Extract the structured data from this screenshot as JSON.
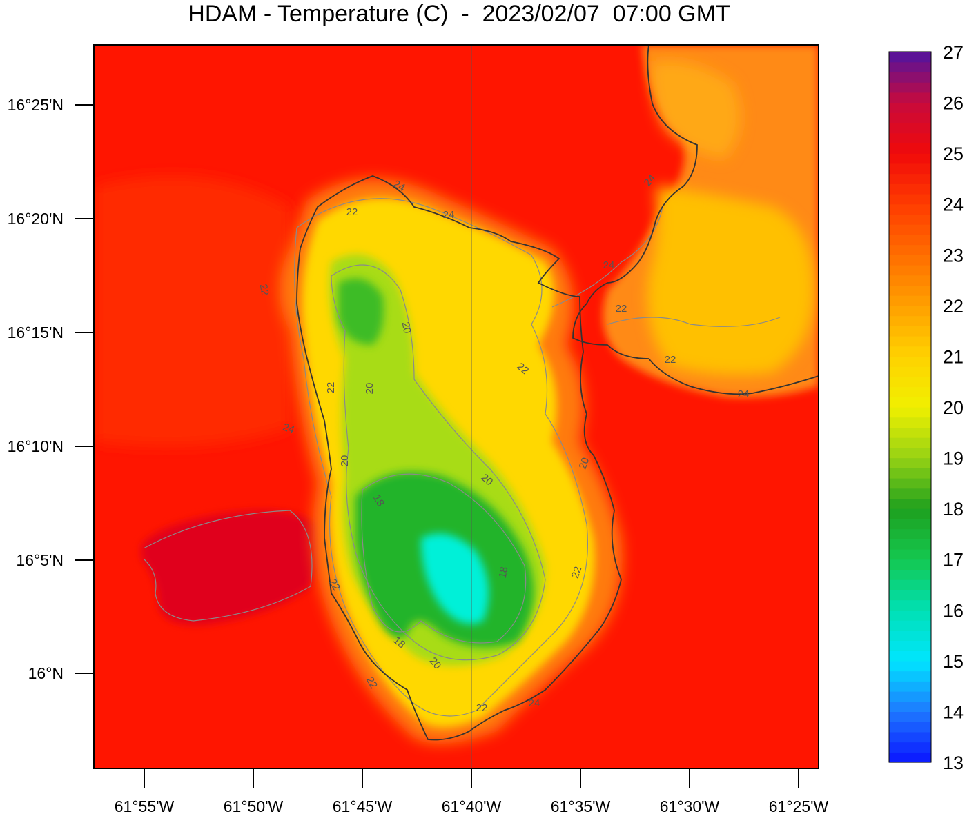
{
  "title": "HDAM - Temperature (C)  -  2023/02/07  07:00 GMT",
  "colors": {
    "sea_warm": "#ff1500",
    "sea_hot": "#e0001c",
    "coast_orange": "#ff7a10",
    "land_yellow": "#ffd800",
    "land_lightgreen": "#a8dc14",
    "land_green": "#22b42c",
    "land_cyan": "#00f0d8",
    "coastline": "#333333",
    "contour": "#8a8a8a"
  },
  "axes": {
    "y_ticks": [
      "16°25'N",
      "16°20'N",
      "16°15'N",
      "16°10'N",
      "16°5'N",
      "16°N"
    ],
    "x_ticks": [
      "61°55'W",
      "61°50'W",
      "61°45'W",
      "61°40'W",
      "61°35'W",
      "61°30'W",
      "61°25'W"
    ]
  },
  "colorbar": {
    "min": 13,
    "max": 27,
    "labels": [
      "27",
      "26",
      "25",
      "24",
      "23",
      "22",
      "21",
      "20",
      "19",
      "18",
      "17",
      "16",
      "15",
      "14",
      "13"
    ],
    "stops": [
      {
        "value": 13,
        "color": "#0a14ff"
      },
      {
        "value": 14,
        "color": "#1e78ff"
      },
      {
        "value": 15,
        "color": "#00e6ff"
      },
      {
        "value": 16,
        "color": "#00e0b4"
      },
      {
        "value": 17,
        "color": "#14c850"
      },
      {
        "value": 18,
        "color": "#1ea01e"
      },
      {
        "value": 19,
        "color": "#96d214"
      },
      {
        "value": 20,
        "color": "#f0f000"
      },
      {
        "value": 21,
        "color": "#ffd200"
      },
      {
        "value": 22,
        "color": "#ffa000"
      },
      {
        "value": 23,
        "color": "#ff6e00"
      },
      {
        "value": 24,
        "color": "#ff3c00"
      },
      {
        "value": 25,
        "color": "#f00a0a"
      },
      {
        "value": 26,
        "color": "#c80a3c"
      },
      {
        "value": 27,
        "color": "#5014a0"
      }
    ]
  },
  "contour_labels": [
    "24",
    "22",
    "22",
    "24",
    "24",
    "22",
    "22",
    "22",
    "20",
    "20",
    "24",
    "22",
    "22",
    "20",
    "20",
    "18",
    "20",
    "18",
    "22",
    "22",
    "18",
    "20",
    "24",
    "22",
    "24",
    "24"
  ]
}
